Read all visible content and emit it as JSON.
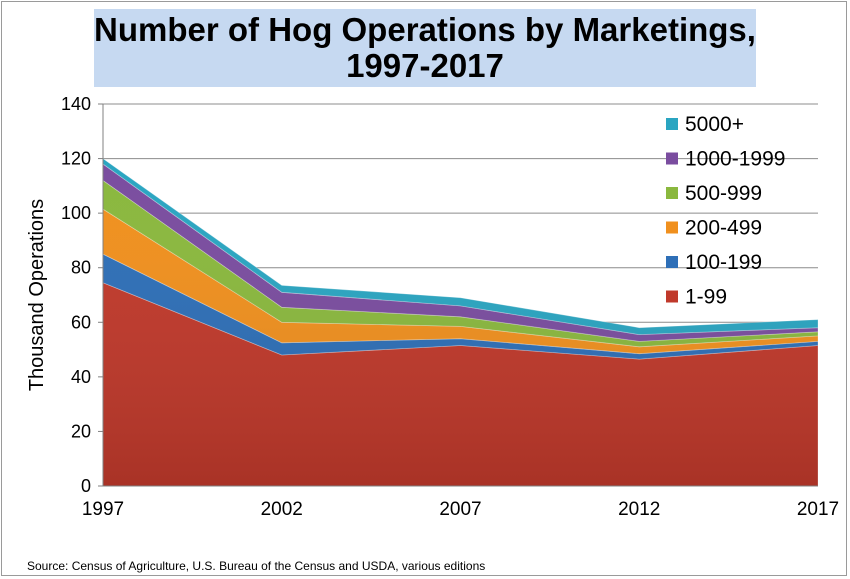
{
  "chart_data": {
    "type": "area",
    "stacked": true,
    "title": [
      "Number of Hog Operations by Marketings,",
      "1997-2017"
    ],
    "xlabel": "",
    "ylabel": "Thousand Operations",
    "categories": [
      "1997",
      "2002",
      "2007",
      "2012",
      "2017"
    ],
    "ylim": [
      0,
      140
    ],
    "yticks": [
      "0",
      "20",
      "40",
      "60",
      "80",
      "100",
      "120",
      "140"
    ],
    "grid": true,
    "legend_position": "top-right",
    "series": [
      {
        "name": "1-99",
        "color": "#c0392b",
        "values": [
          74.5,
          48,
          51.5,
          46.5,
          51.5
        ]
      },
      {
        "name": "100-199",
        "color": "#2e6fb7",
        "values": [
          10.5,
          4.5,
          2.5,
          2,
          1.5
        ]
      },
      {
        "name": "200-499",
        "color": "#f0901e",
        "values": [
          16.5,
          7.5,
          4.5,
          2.5,
          2
        ]
      },
      {
        "name": "500-999",
        "color": "#8ab83e",
        "values": [
          10.5,
          5.5,
          3.5,
          2,
          1.5
        ]
      },
      {
        "name": "1000-1999",
        "color": "#7a4d9f",
        "values": [
          6,
          5.5,
          4,
          2.5,
          1.5
        ]
      },
      {
        "name": "5000+",
        "color": "#2aa5c1",
        "values": [
          2,
          2.5,
          3,
          2.5,
          3
        ]
      }
    ]
  },
  "source_note": "Source:  Census of Agriculture, U.S. Bureau of the Census and USDA, various editions"
}
